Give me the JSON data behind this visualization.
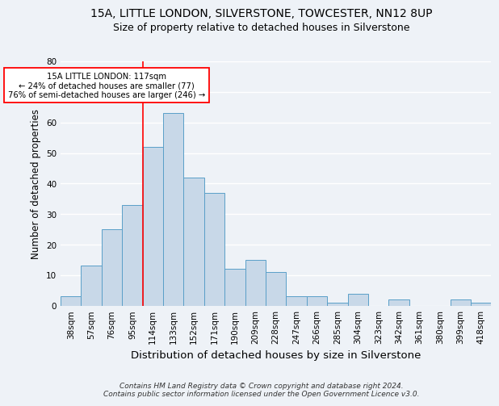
{
  "title1": "15A, LITTLE LONDON, SILVERSTONE, TOWCESTER, NN12 8UP",
  "title2": "Size of property relative to detached houses in Silverstone",
  "xlabel": "Distribution of detached houses by size in Silverstone",
  "ylabel": "Number of detached properties",
  "footnote1": "Contains HM Land Registry data © Crown copyright and database right 2024.",
  "footnote2": "Contains public sector information licensed under the Open Government Licence v3.0.",
  "categories": [
    "38sqm",
    "57sqm",
    "76sqm",
    "95sqm",
    "114sqm",
    "133sqm",
    "152sqm",
    "171sqm",
    "190sqm",
    "209sqm",
    "228sqm",
    "247sqm",
    "266sqm",
    "285sqm",
    "304sqm",
    "323sqm",
    "342sqm",
    "361sqm",
    "380sqm",
    "399sqm",
    "418sqm"
  ],
  "values": [
    3,
    13,
    25,
    33,
    52,
    63,
    42,
    37,
    12,
    15,
    11,
    3,
    3,
    1,
    4,
    0,
    2,
    0,
    0,
    2,
    1
  ],
  "bar_color": "#c8d8e8",
  "bar_edge_color": "#5a9fc8",
  "annotation_text": "15A LITTLE LONDON: 117sqm\n← 24% of detached houses are smaller (77)\n76% of semi-detached houses are larger (246) →",
  "annotation_box_color": "white",
  "annotation_box_edge_color": "red",
  "vline_color": "red",
  "vline_x_index": 3.5,
  "ylim": [
    0,
    80
  ],
  "yticks": [
    0,
    10,
    20,
    30,
    40,
    50,
    60,
    70,
    80
  ],
  "background_color": "#eef2f7",
  "grid_color": "white",
  "title_fontsize": 10,
  "subtitle_fontsize": 9,
  "tick_fontsize": 7.5,
  "ylabel_fontsize": 8.5,
  "xlabel_fontsize": 9.5,
  "footnote_fontsize": 6.5
}
